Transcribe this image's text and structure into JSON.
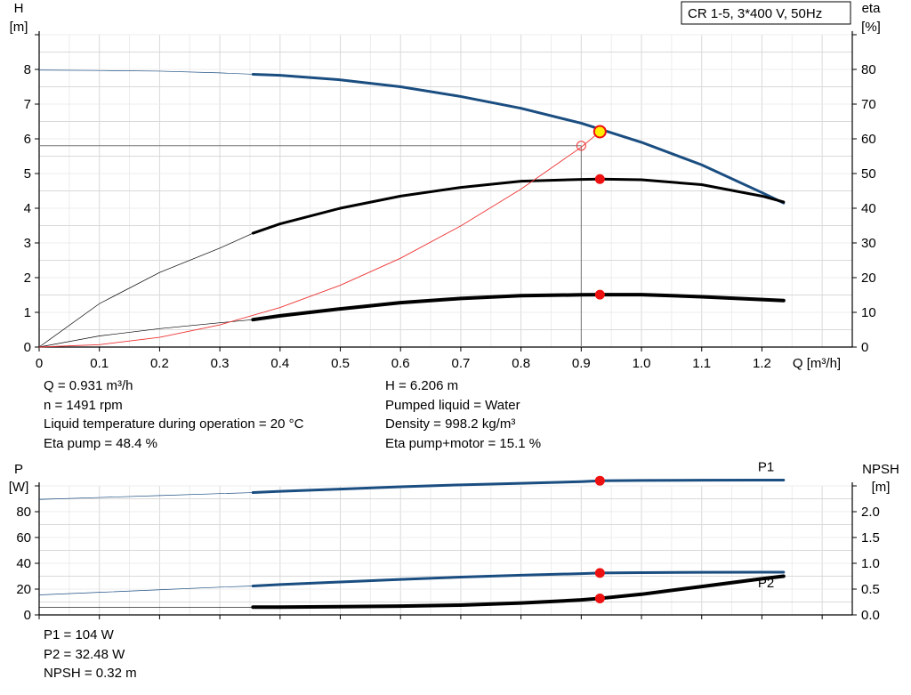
{
  "legend_box": "CR 1-5, 3*400 V, 50Hz",
  "chart_data": [
    {
      "type": "line",
      "name": "pump-curves",
      "x_axis": {
        "label": "Q [m³/h]",
        "range": [
          0,
          1.35
        ],
        "ticks": [
          "0",
          "0.1",
          "0.2",
          "0.3",
          "0.4",
          "0.5",
          "0.6",
          "0.7",
          "0.8",
          "0.9",
          "1.0",
          "1.1",
          "1.2"
        ]
      },
      "y_left": {
        "label_line1": "H",
        "label_line2": "[m]",
        "range": [
          0,
          9
        ],
        "ticks": [
          "0",
          "1",
          "2",
          "3",
          "4",
          "5",
          "6",
          "7",
          "8"
        ]
      },
      "y_right": {
        "label_line1": "eta",
        "label_line2": "[%]",
        "range": [
          0,
          90
        ],
        "ticks": [
          "0",
          "10",
          "20",
          "30",
          "40",
          "50",
          "60",
          "70",
          "80"
        ]
      },
      "grid": true,
      "series": [
        {
          "key": "head",
          "color": "#1a4d80",
          "axis": "left",
          "bold_from": 0.355,
          "x": [
            0,
            0.1,
            0.2,
            0.3,
            0.355,
            0.4,
            0.5,
            0.6,
            0.7,
            0.8,
            0.9,
            1.0,
            1.1,
            1.2,
            1.236
          ],
          "y": [
            7.98,
            7.97,
            7.95,
            7.9,
            7.86,
            7.83,
            7.7,
            7.5,
            7.22,
            6.88,
            6.45,
            5.9,
            5.25,
            4.45,
            4.15
          ]
        },
        {
          "key": "eta-pump",
          "color": "#000000",
          "axis": "right",
          "bold_from": 0.355,
          "x": [
            0,
            0.1,
            0.2,
            0.3,
            0.355,
            0.4,
            0.5,
            0.6,
            0.7,
            0.8,
            0.9,
            0.931,
            1.0,
            1.1,
            1.2,
            1.236
          ],
          "y": [
            0,
            12.5,
            21.5,
            28.5,
            32.8,
            35.5,
            40,
            43.5,
            46,
            47.8,
            48.3,
            48.4,
            48.2,
            46.8,
            43.5,
            41.8
          ]
        },
        {
          "key": "eta-total",
          "color": "#000000",
          "axis": "right",
          "bold_from": 0.355,
          "x": [
            0,
            0.1,
            0.2,
            0.3,
            0.355,
            0.4,
            0.5,
            0.6,
            0.7,
            0.8,
            0.9,
            0.931,
            1.0,
            1.1,
            1.2,
            1.236
          ],
          "y": [
            0,
            3.2,
            5.3,
            7,
            7.9,
            9,
            11,
            12.8,
            14,
            14.8,
            15.05,
            15.1,
            15.1,
            14.5,
            13.7,
            13.4
          ]
        },
        {
          "key": "system",
          "color": "#ee3333",
          "axis": "left",
          "bold_from": null,
          "x": [
            0,
            0.1,
            0.2,
            0.3,
            0.4,
            0.5,
            0.6,
            0.7,
            0.8,
            0.9,
            0.931
          ],
          "y": [
            0,
            0.07,
            0.28,
            0.64,
            1.14,
            1.78,
            2.56,
            3.49,
            4.55,
            5.76,
            6.206
          ]
        }
      ],
      "duty_points": [
        {
          "key": "duty-head",
          "x": 0.931,
          "y": 6.206,
          "axis": "left",
          "fill": "#ffee00"
        },
        {
          "key": "duty-eta-pump",
          "x": 0.931,
          "y": 48.4,
          "axis": "right",
          "fill": "#ee1111"
        },
        {
          "key": "duty-eta-total",
          "x": 0.931,
          "y": 15.1,
          "axis": "right",
          "fill": "#ee1111"
        }
      ],
      "reference": {
        "x": 0.9,
        "y": 5.8
      }
    },
    {
      "type": "line",
      "name": "power-npsh",
      "x_axis": {
        "label": "",
        "range": [
          0,
          1.35
        ]
      },
      "y_left": {
        "label_line1": "P",
        "label_line2": "[W]",
        "range": [
          0,
          100
        ],
        "ticks": [
          "0",
          "20",
          "40",
          "60",
          "80"
        ]
      },
      "y_right": {
        "label_line1": "NPSH",
        "label_line2": "[m]",
        "range": [
          0,
          2.5
        ],
        "ticks": [
          "0.0",
          "0.5",
          "1.0",
          "1.5",
          "2.0"
        ]
      },
      "grid": true,
      "series": [
        {
          "key": "p1",
          "name": "P1",
          "color": "#1a4d80",
          "axis": "left",
          "bold_from": 0.355,
          "x": [
            0,
            0.1,
            0.2,
            0.3,
            0.355,
            0.4,
            0.5,
            0.6,
            0.7,
            0.8,
            0.9,
            0.931,
            1.0,
            1.1,
            1.2,
            1.236
          ],
          "y": [
            89.5,
            91,
            92.5,
            94,
            94.8,
            95.8,
            97.5,
            99.3,
            100.8,
            102,
            103.3,
            104,
            104.2,
            104.4,
            104.5,
            104.5
          ]
        },
        {
          "key": "p2",
          "name": "P2",
          "color": "#1a4d80",
          "axis": "left",
          "bold_from": 0.355,
          "x": [
            0,
            0.1,
            0.2,
            0.3,
            0.355,
            0.4,
            0.5,
            0.6,
            0.7,
            0.8,
            0.9,
            0.931,
            1.0,
            1.1,
            1.2,
            1.236
          ],
          "y": [
            15.5,
            17.5,
            19.5,
            21.5,
            22.4,
            23.5,
            25.5,
            27.5,
            29.3,
            30.8,
            32,
            32.48,
            32.8,
            33,
            33.1,
            33.1
          ]
        },
        {
          "key": "npsh",
          "name": "",
          "color": "#000000",
          "axis": "right",
          "bold_from": 0.355,
          "x": [
            0,
            0.1,
            0.2,
            0.3,
            0.355,
            0.4,
            0.5,
            0.6,
            0.7,
            0.8,
            0.9,
            0.931,
            1.0,
            1.1,
            1.2,
            1.236
          ],
          "y": [
            0.15,
            0.15,
            0.15,
            0.15,
            0.15,
            0.15,
            0.16,
            0.17,
            0.19,
            0.23,
            0.29,
            0.32,
            0.4,
            0.55,
            0.7,
            0.75
          ]
        }
      ],
      "duty_points": [
        {
          "key": "duty-p1",
          "x": 0.931,
          "y": 104,
          "axis": "left",
          "fill": "#ee1111"
        },
        {
          "key": "duty-p2",
          "x": 0.931,
          "y": 32.48,
          "axis": "left",
          "fill": "#ee1111"
        },
        {
          "key": "duty-npsh",
          "x": 0.931,
          "y": 0.32,
          "axis": "right",
          "fill": "#ee1111"
        }
      ]
    }
  ],
  "info_left": [
    "Q = 0.931 m³/h",
    "n = 1491 rpm",
    "Liquid temperature during operation = 20 °C",
    "Eta pump = 48.4 %"
  ],
  "info_right": [
    "H = 6.206 m",
    "Pumped liquid = Water",
    "Density = 998.2 kg/m³",
    "Eta pump+motor = 15.1 %"
  ],
  "info_bottom": [
    "P1 = 104 W",
    "P2 = 32.48 W",
    "NPSH = 0.32 m"
  ]
}
